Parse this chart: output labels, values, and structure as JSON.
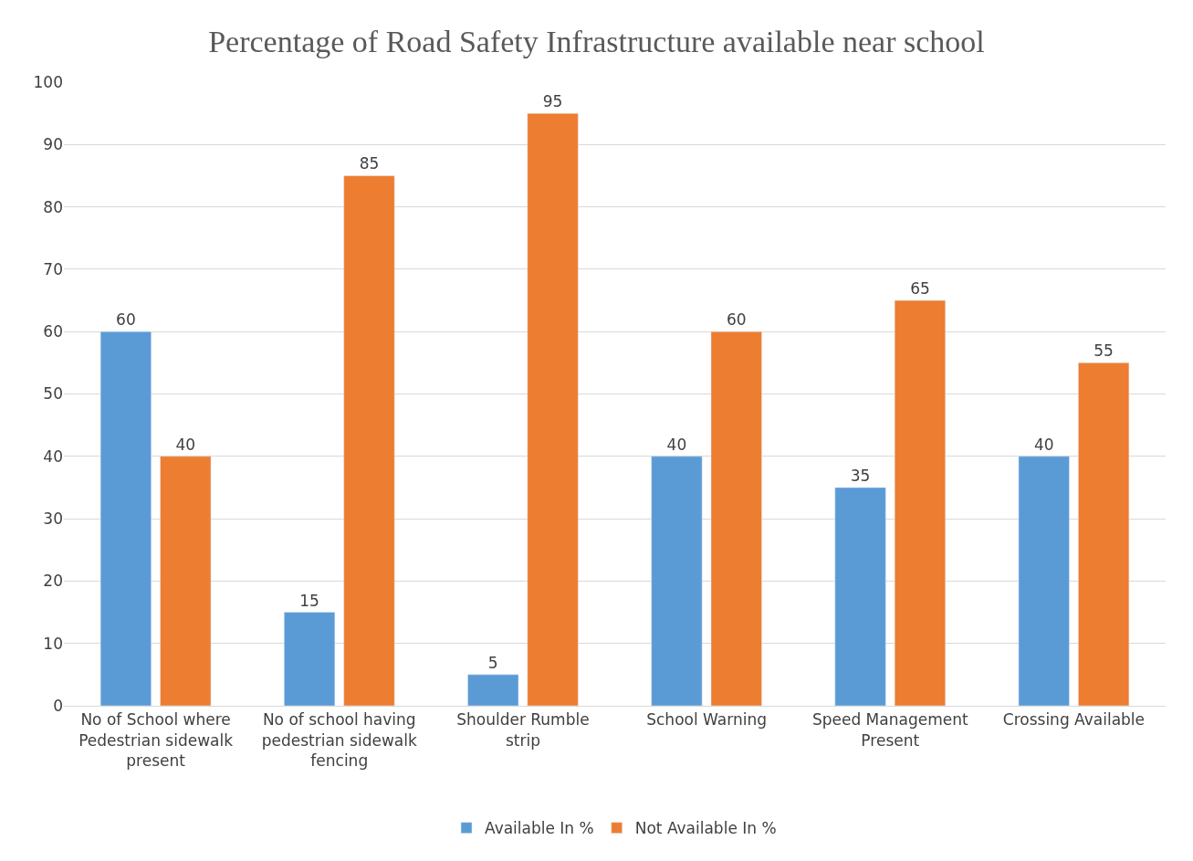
{
  "chart_data": {
    "type": "bar",
    "title": "Percentage of Road Safety Infrastructure available near school",
    "categories": [
      "No of School where Pedestrian sidewalk present",
      "No of school having pedestrian sidewalk fencing",
      "Shoulder Rumble strip",
      "School Warning",
      "Speed Management Present",
      "Crossing Available"
    ],
    "series": [
      {
        "name": "Available In %",
        "color": "#5b9bd5",
        "values": [
          60,
          15,
          5,
          40,
          35,
          40
        ]
      },
      {
        "name": "Not Available In %",
        "color": "#ed7d31",
        "values": [
          40,
          85,
          95,
          60,
          65,
          55
        ]
      }
    ],
    "ylim": [
      0,
      100
    ],
    "yticks": [
      0,
      10,
      20,
      30,
      40,
      50,
      60,
      70,
      80,
      90,
      100
    ],
    "grid": "y",
    "legend": "bottom",
    "data_labels": true
  }
}
